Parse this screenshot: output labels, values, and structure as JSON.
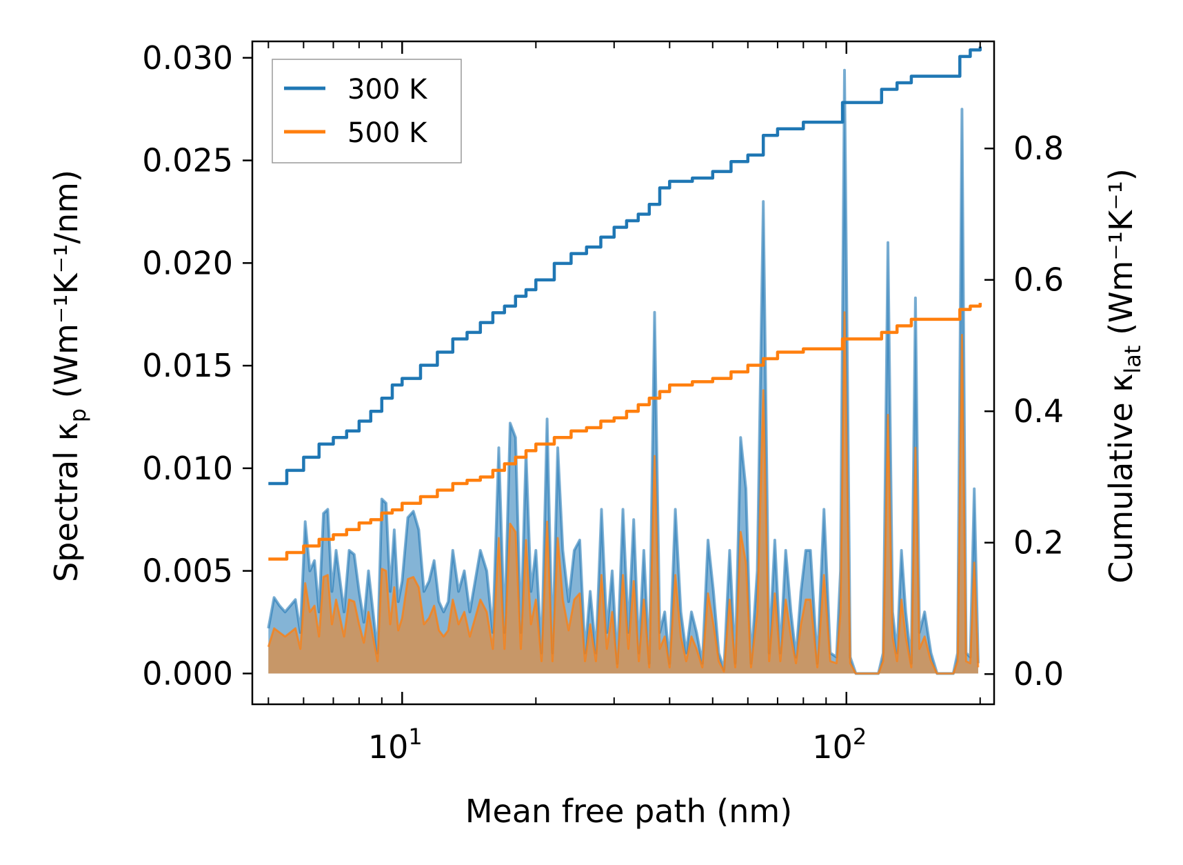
{
  "chart_data": {
    "type": "line",
    "xscale": "log",
    "xlim": [
      4.6,
      215
    ],
    "ylim_left": [
      -0.0015,
      0.0308
    ],
    "ylim_right": [
      -0.046,
      0.963
    ],
    "xlabel": "Mean free path (nm)",
    "ylabel_left": {
      "main": "Spectral κ",
      "sub": "p",
      "unit": " (Wm⁻¹K⁻¹/nm)"
    },
    "ylabel_right": {
      "main": "Cumulative κ",
      "sub": "lat",
      "unit": " (Wm⁻¹K⁻¹)"
    },
    "x_major_ticks": [
      {
        "value": 10,
        "base": "10",
        "exp": "1"
      },
      {
        "value": 100,
        "base": "10",
        "exp": "2"
      }
    ],
    "y_left_ticks": [
      "0.000",
      "0.005",
      "0.010",
      "0.015",
      "0.020",
      "0.025",
      "0.030"
    ],
    "y_right_ticks": [
      "0.0",
      "0.2",
      "0.4",
      "0.6",
      "0.8"
    ],
    "legend": {
      "position": "upper-left",
      "entries": [
        "300 K",
        "500 K"
      ]
    },
    "colors": {
      "s300": "#1f77b4",
      "s500": "#ff7f0e",
      "fill300": "#1f77b4",
      "fill500": "#ff7f0e"
    },
    "series": [
      {
        "name": "300 K",
        "axis": "right",
        "kind": "cumulative",
        "x": [
          5.0,
          5.5,
          6.0,
          6.5,
          7.0,
          7.5,
          8.0,
          8.5,
          9.0,
          9.5,
          10,
          11,
          12,
          13,
          14,
          15,
          16,
          17,
          18,
          19,
          20,
          22,
          24,
          26,
          28,
          30,
          32,
          34,
          36,
          38,
          40,
          45,
          50,
          55,
          60,
          65,
          70,
          75,
          80,
          90,
          97,
          98,
          110,
          120,
          130,
          140,
          150,
          170,
          180,
          190,
          200
        ],
        "y": [
          0.29,
          0.31,
          0.33,
          0.35,
          0.36,
          0.37,
          0.385,
          0.4,
          0.42,
          0.44,
          0.45,
          0.47,
          0.49,
          0.51,
          0.52,
          0.535,
          0.55,
          0.56,
          0.575,
          0.585,
          0.6,
          0.625,
          0.64,
          0.65,
          0.665,
          0.68,
          0.69,
          0.7,
          0.715,
          0.74,
          0.75,
          0.755,
          0.765,
          0.78,
          0.79,
          0.82,
          0.83,
          0.83,
          0.84,
          0.84,
          0.84,
          0.87,
          0.87,
          0.89,
          0.9,
          0.91,
          0.91,
          0.91,
          0.94,
          0.95,
          0.955
        ]
      },
      {
        "name": "500 K",
        "axis": "right",
        "kind": "cumulative",
        "x": [
          5.0,
          5.5,
          6.0,
          6.5,
          7.0,
          7.5,
          8.0,
          8.5,
          9.0,
          9.5,
          10,
          11,
          12,
          13,
          14,
          15,
          16,
          17,
          18,
          19,
          20,
          22,
          24,
          26,
          28,
          30,
          32,
          34,
          36,
          38,
          40,
          45,
          50,
          55,
          60,
          65,
          70,
          75,
          80,
          90,
          97,
          98,
          110,
          120,
          130,
          140,
          150,
          170,
          180,
          190,
          200
        ],
        "y": [
          0.175,
          0.185,
          0.195,
          0.205,
          0.212,
          0.22,
          0.23,
          0.235,
          0.245,
          0.25,
          0.26,
          0.27,
          0.28,
          0.29,
          0.295,
          0.3,
          0.31,
          0.32,
          0.33,
          0.34,
          0.35,
          0.36,
          0.37,
          0.375,
          0.385,
          0.39,
          0.4,
          0.41,
          0.42,
          0.43,
          0.44,
          0.445,
          0.45,
          0.46,
          0.47,
          0.48,
          0.49,
          0.49,
          0.495,
          0.495,
          0.495,
          0.51,
          0.51,
          0.52,
          0.53,
          0.54,
          0.54,
          0.54,
          0.555,
          0.56,
          0.565
        ]
      },
      {
        "name": "300 K spectral",
        "axis": "left",
        "kind": "spectral",
        "x": [
          5.0,
          5.15,
          5.3,
          5.45,
          5.6,
          5.75,
          5.9,
          6.05,
          6.2,
          6.35,
          6.5,
          6.65,
          6.8,
          6.95,
          7.1,
          7.25,
          7.4,
          7.6,
          7.8,
          8.0,
          8.2,
          8.4,
          8.6,
          8.8,
          9.0,
          9.2,
          9.4,
          9.6,
          9.8,
          10.0,
          10.3,
          10.6,
          10.9,
          11.2,
          11.5,
          11.8,
          12.1,
          12.4,
          12.7,
          13.0,
          13.4,
          13.8,
          14.2,
          14.6,
          15.0,
          15.5,
          16.0,
          16.5,
          17.0,
          17.5,
          18.0,
          18.5,
          19.0,
          19.5,
          20.0,
          20.6,
          21.2,
          21.8,
          22.4,
          23.0,
          23.7,
          24.4,
          25.1,
          25.8,
          26.5,
          27.3,
          28.1,
          28.9,
          29.7,
          30.5,
          31.4,
          32.3,
          33.2,
          34.1,
          35.0,
          36.0,
          37.0,
          38.0,
          39.0,
          40.0,
          41.2,
          42.4,
          43.6,
          44.8,
          46.0,
          47.4,
          48.8,
          50.2,
          51.6,
          53.0,
          54.6,
          56.2,
          57.8,
          59.4,
          61.0,
          63.0,
          65.0,
          67.0,
          69.0,
          71.0,
          73.0,
          75.0,
          77.0,
          79.0,
          81.0,
          83.0,
          86.0,
          89.0,
          92.0,
          95.0,
          97.0,
          99.0,
          102.0,
          105.0,
          110.0,
          115.0,
          118.0,
          121.0,
          124.0,
          127.0,
          130.0,
          133.0,
          136.0,
          140.0,
          143.0,
          146.0,
          150.0,
          155.0,
          160.0,
          165.0,
          170.0,
          174.0,
          178.0,
          182.0,
          186.0,
          190.0,
          194.0,
          198.0
        ],
        "y": [
          0.0022,
          0.0037,
          0.0033,
          0.003,
          0.0033,
          0.0036,
          0.002,
          0.0074,
          0.005,
          0.0055,
          0.003,
          0.0078,
          0.008,
          0.004,
          0.006,
          0.0045,
          0.003,
          0.006,
          0.0058,
          0.004,
          0.0025,
          0.005,
          0.003,
          0.001,
          0.0085,
          0.0083,
          0.004,
          0.007,
          0.0035,
          0.0045,
          0.0076,
          0.0079,
          0.007,
          0.004,
          0.0045,
          0.0055,
          0.0035,
          0.003,
          0.0035,
          0.006,
          0.004,
          0.005,
          0.003,
          0.0045,
          0.006,
          0.005,
          0.002,
          0.011,
          0.002,
          0.0122,
          0.0115,
          0.002,
          0.0108,
          0.004,
          0.006,
          0.001,
          0.0124,
          0.001,
          0.011,
          0.006,
          0.0035,
          0.006,
          0.0065,
          0.001,
          0.004,
          0.001,
          0.008,
          0.002,
          0.005,
          0.0005,
          0.008,
          0.002,
          0.0075,
          0.001,
          0.006,
          0.0005,
          0.0176,
          0.002,
          0.003,
          0.0005,
          0.008,
          0.003,
          0.001,
          0.003,
          0.002,
          0.0005,
          0.0065,
          0.004,
          0.001,
          0.0002,
          0.006,
          0.0005,
          0.0115,
          0.009,
          0.0005,
          0.005,
          0.023,
          0.001,
          0.0065,
          0.001,
          0.006,
          0.003,
          0.0008,
          0.004,
          0.006,
          0.006,
          0.0005,
          0.008,
          0.001,
          0.0008,
          0.005,
          0.0294,
          0.0008,
          0.0,
          0.0,
          0.0,
          0.0,
          0.001,
          0.021,
          0.003,
          0.001,
          0.006,
          0.003,
          0.0005,
          0.0183,
          0.002,
          0.003,
          0.001,
          0.0,
          0.0,
          0.0,
          0.0,
          0.001,
          0.0275,
          0.001,
          0.0008,
          0.009,
          0.0005
        ]
      },
      {
        "name": "500 K spectral",
        "axis": "left",
        "kind": "spectral",
        "x": [
          5.0,
          5.15,
          5.3,
          5.45,
          5.6,
          5.75,
          5.9,
          6.05,
          6.2,
          6.35,
          6.5,
          6.65,
          6.8,
          6.95,
          7.1,
          7.25,
          7.4,
          7.6,
          7.8,
          8.0,
          8.2,
          8.4,
          8.6,
          8.8,
          9.0,
          9.2,
          9.4,
          9.6,
          9.8,
          10.0,
          10.3,
          10.6,
          10.9,
          11.2,
          11.5,
          11.8,
          12.1,
          12.4,
          12.7,
          13.0,
          13.4,
          13.8,
          14.2,
          14.6,
          15.0,
          15.5,
          16.0,
          16.5,
          17.0,
          17.5,
          18.0,
          18.5,
          19.0,
          19.5,
          20.0,
          20.6,
          21.2,
          21.8,
          22.4,
          23.0,
          23.7,
          24.4,
          25.1,
          25.8,
          26.5,
          27.3,
          28.1,
          28.9,
          29.7,
          30.5,
          31.4,
          32.3,
          33.2,
          34.1,
          35.0,
          36.0,
          37.0,
          38.0,
          39.0,
          40.0,
          41.2,
          42.4,
          43.6,
          44.8,
          46.0,
          47.4,
          48.8,
          50.2,
          51.6,
          53.0,
          54.6,
          56.2,
          57.8,
          59.4,
          61.0,
          63.0,
          65.0,
          67.0,
          69.0,
          71.0,
          73.0,
          75.0,
          77.0,
          79.0,
          81.0,
          83.0,
          86.0,
          89.0,
          92.0,
          95.0,
          97.0,
          99.0,
          102.0,
          105.0,
          110.0,
          115.0,
          118.0,
          121.0,
          124.0,
          127.0,
          130.0,
          133.0,
          136.0,
          140.0,
          143.0,
          146.0,
          150.0,
          155.0,
          160.0,
          165.0,
          170.0,
          174.0,
          178.0,
          182.0,
          186.0,
          190.0,
          194.0,
          198.0
        ],
        "y": [
          0.0013,
          0.0022,
          0.002,
          0.0018,
          0.002,
          0.0022,
          0.0012,
          0.0044,
          0.003,
          0.0033,
          0.0018,
          0.0047,
          0.0048,
          0.0024,
          0.0036,
          0.0027,
          0.0018,
          0.0036,
          0.0035,
          0.0024,
          0.0015,
          0.003,
          0.0018,
          0.0006,
          0.0051,
          0.005,
          0.0024,
          0.0042,
          0.0021,
          0.0027,
          0.0046,
          0.0047,
          0.0042,
          0.0024,
          0.0027,
          0.0033,
          0.0021,
          0.0018,
          0.0021,
          0.0036,
          0.0024,
          0.003,
          0.0018,
          0.0027,
          0.0036,
          0.003,
          0.0012,
          0.0066,
          0.0012,
          0.0073,
          0.0069,
          0.0012,
          0.0065,
          0.0024,
          0.0036,
          0.0006,
          0.0074,
          0.0006,
          0.0066,
          0.0036,
          0.0021,
          0.0036,
          0.0039,
          0.0006,
          0.0024,
          0.0006,
          0.0048,
          0.0012,
          0.003,
          0.0003,
          0.0048,
          0.0012,
          0.0045,
          0.0006,
          0.0036,
          0.0003,
          0.0106,
          0.0012,
          0.0018,
          0.0003,
          0.0048,
          0.0018,
          0.0006,
          0.0018,
          0.0012,
          0.0003,
          0.0039,
          0.0024,
          0.0006,
          0.0001,
          0.0036,
          0.0003,
          0.0069,
          0.0054,
          0.0003,
          0.003,
          0.0138,
          0.0006,
          0.0039,
          0.0006,
          0.0036,
          0.0018,
          0.0005,
          0.0024,
          0.0036,
          0.0036,
          0.0003,
          0.0048,
          0.0006,
          0.0005,
          0.003,
          0.0176,
          0.0005,
          0.0,
          0.0,
          0.0,
          0.0,
          0.0006,
          0.0126,
          0.0018,
          0.0006,
          0.0036,
          0.0018,
          0.0003,
          0.011,
          0.0012,
          0.0018,
          0.0006,
          0.0,
          0.0,
          0.0,
          0.0,
          0.0006,
          0.0165,
          0.0006,
          0.0005,
          0.0054,
          0.0003
        ]
      }
    ]
  }
}
